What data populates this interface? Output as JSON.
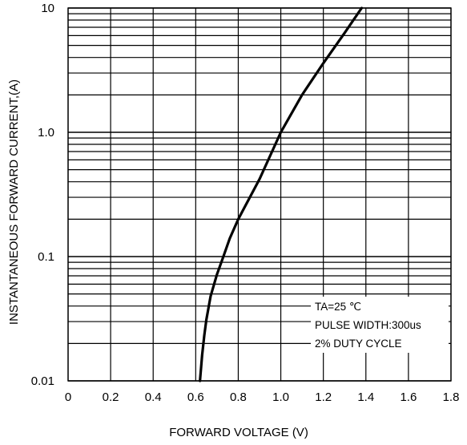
{
  "chart_data": {
    "type": "line",
    "xlabel": "FORWARD VOLTAGE (V)",
    "ylabel": "INSTANTANEOUS FORWARD CURRENT,(A)",
    "xlim": [
      0,
      1.8
    ],
    "ylim": [
      0.01,
      10
    ],
    "yscale": "log",
    "grid": true,
    "x_ticks": [
      "0",
      "0.2",
      "0.4",
      "0.6",
      "0.8",
      "1.0",
      "1.2",
      "1.4",
      "1.6",
      "1.8"
    ],
    "y_ticks": [
      {
        "value": 0.01,
        "label": "0.01"
      },
      {
        "value": 0.1,
        "label": "0.1"
      },
      {
        "value": 1,
        "label": "1.0"
      },
      {
        "value": 10,
        "label": "10"
      }
    ],
    "annotations": [
      "TA=25 ℃",
      "PULSE WIDTH:300us",
      "2% DUTY CYCLE"
    ],
    "series": [
      {
        "x": [
          0.62,
          0.63,
          0.64,
          0.65,
          0.67,
          0.7,
          0.73,
          0.76,
          0.8,
          0.85,
          0.9,
          1.0,
          1.1,
          1.2,
          1.3,
          1.38
        ],
        "y": [
          0.01,
          0.016,
          0.023,
          0.031,
          0.048,
          0.072,
          0.1,
          0.14,
          0.2,
          0.29,
          0.42,
          1.0,
          2.0,
          3.6,
          6.3,
          10
        ]
      }
    ]
  }
}
